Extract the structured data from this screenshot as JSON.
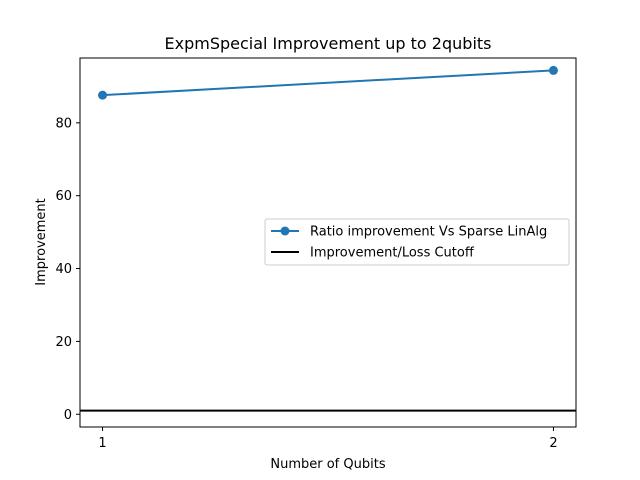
{
  "chart_data": {
    "type": "line",
    "title": "ExpmSpecial Improvement up to 2qubits",
    "xlabel": "Number of Qubits",
    "ylabel": "Improvement",
    "x": [
      1,
      2
    ],
    "xticks": [
      "1",
      "2"
    ],
    "xlim": [
      0.95,
      2.05
    ],
    "ylim": [
      -3.5,
      97.8
    ],
    "yticks": [
      "0",
      "20",
      "40",
      "60",
      "80"
    ],
    "yticks_values": [
      0,
      20,
      40,
      60,
      80
    ],
    "series": [
      {
        "name": "Ratio improvement Vs Sparse LinAlg",
        "values": [
          87.6,
          94.4
        ],
        "color": "#1f77b4",
        "marker": "circle"
      }
    ],
    "reference_line": {
      "name": "Improvement/Loss Cutoff",
      "y": 1,
      "color": "#000000"
    },
    "legend_position": "center-right",
    "grid": false
  }
}
